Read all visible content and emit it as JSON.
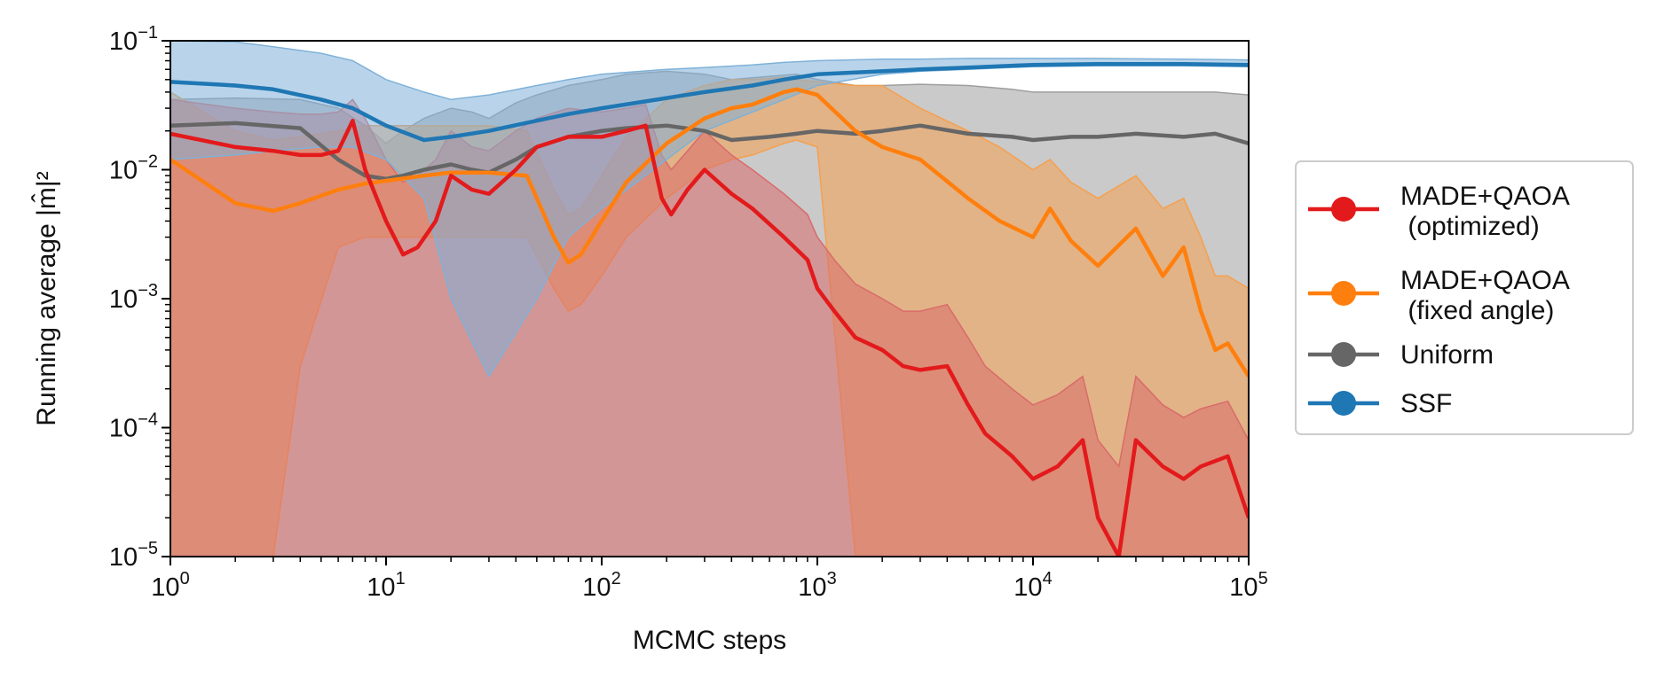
{
  "chart_data": {
    "type": "line",
    "xlabel": "MCMC steps",
    "ylabel": "Running average |m̂|²",
    "xscale": "log",
    "yscale": "log",
    "xlim": [
      1,
      100000
    ],
    "ylim": [
      1e-05,
      0.1
    ],
    "x_ticks": [
      {
        "value": 1,
        "base": "10",
        "exp": "0"
      },
      {
        "value": 10,
        "base": "10",
        "exp": "1"
      },
      {
        "value": 100,
        "base": "10",
        "exp": "2"
      },
      {
        "value": 1000,
        "base": "10",
        "exp": "3"
      },
      {
        "value": 10000,
        "base": "10",
        "exp": "4"
      },
      {
        "value": 100000,
        "base": "10",
        "exp": "5"
      }
    ],
    "y_ticks": [
      {
        "value": 1e-05,
        "base": "10",
        "exp": "−5"
      },
      {
        "value": 0.0001,
        "base": "10",
        "exp": "−4"
      },
      {
        "value": 0.001,
        "base": "10",
        "exp": "−3"
      },
      {
        "value": 0.01,
        "base": "10",
        "exp": "−2"
      },
      {
        "value": 0.1,
        "base": "10",
        "exp": "−1"
      }
    ],
    "grid": false,
    "legend_position": "outside-right",
    "series": [
      {
        "name": "Uniform",
        "color": "#666666",
        "band_color": "#9e9e9e",
        "x": [
          1,
          2,
          4,
          6,
          8,
          10,
          12,
          15,
          20,
          25,
          30,
          40,
          50,
          70,
          100,
          130,
          200,
          300,
          400,
          600,
          800,
          1000,
          1500,
          2000,
          3000,
          5000,
          8000,
          10000,
          15000,
          20000,
          30000,
          50000,
          70000,
          100000
        ],
        "y": [
          0.022,
          0.023,
          0.021,
          0.012,
          0.009,
          0.0085,
          0.009,
          0.01,
          0.011,
          0.01,
          0.0095,
          0.012,
          0.015,
          0.018,
          0.02,
          0.021,
          0.022,
          0.02,
          0.017,
          0.018,
          0.019,
          0.02,
          0.019,
          0.02,
          0.022,
          0.019,
          0.018,
          0.017,
          0.018,
          0.018,
          0.019,
          0.018,
          0.019,
          0.016
        ],
        "lower": [
          1e-05,
          1e-05,
          1e-05,
          1e-05,
          1e-05,
          1e-05,
          1e-05,
          1e-05,
          1e-05,
          1e-05,
          1e-05,
          1e-05,
          1e-05,
          1e-05,
          1e-05,
          1e-05,
          1e-05,
          1e-05,
          1e-05,
          1e-05,
          1e-05,
          1e-05,
          1e-05,
          1e-05,
          1e-05,
          1e-05,
          1e-05,
          1e-05,
          1e-05,
          1e-05,
          1e-05,
          1e-05,
          1e-05,
          1e-05
        ],
        "upper": [
          0.035,
          0.036,
          0.035,
          0.03,
          0.022,
          0.016,
          0.02,
          0.025,
          0.03,
          0.028,
          0.025,
          0.033,
          0.038,
          0.045,
          0.05,
          0.055,
          0.058,
          0.055,
          0.05,
          0.053,
          0.055,
          0.05,
          0.045,
          0.045,
          0.046,
          0.045,
          0.042,
          0.04,
          0.04,
          0.04,
          0.04,
          0.04,
          0.04,
          0.038
        ]
      },
      {
        "name": "MADE+QAOA\n(fixed angle)",
        "color": "#ff7f0e",
        "band_color": "#f5a04f",
        "x": [
          1,
          2,
          3,
          4,
          6,
          8,
          10,
          15,
          20,
          30,
          45,
          60,
          70,
          80,
          100,
          130,
          200,
          300,
          400,
          500,
          700,
          800,
          1000,
          1500,
          2000,
          3000,
          5000,
          7000,
          10000,
          12000,
          15000,
          20000,
          30000,
          40000,
          50000,
          60000,
          70000,
          80000,
          100000
        ],
        "y": [
          0.012,
          0.0055,
          0.0048,
          0.0055,
          0.007,
          0.0078,
          0.0082,
          0.009,
          0.0095,
          0.0095,
          0.009,
          0.003,
          0.0019,
          0.0022,
          0.004,
          0.008,
          0.016,
          0.025,
          0.03,
          0.032,
          0.04,
          0.042,
          0.038,
          0.02,
          0.015,
          0.012,
          0.006,
          0.004,
          0.003,
          0.005,
          0.0028,
          0.0018,
          0.0035,
          0.0015,
          0.0025,
          0.0008,
          0.0004,
          0.00045,
          0.00025
        ],
        "lower": [
          1e-05,
          1e-05,
          1e-05,
          0.0003,
          0.0025,
          0.003,
          0.003,
          0.003,
          0.003,
          0.003,
          0.003,
          0.0012,
          0.0008,
          0.0009,
          0.0015,
          0.003,
          0.006,
          0.01,
          0.012,
          0.013,
          0.016,
          0.017,
          0.015,
          1e-05,
          1e-05,
          1e-05,
          1e-05,
          1e-05,
          1e-05,
          1e-05,
          1e-05,
          1e-05,
          1e-05,
          1e-05,
          1e-05,
          1e-05,
          1e-05,
          1e-05,
          1e-05
        ],
        "upper": [
          0.04,
          0.02,
          0.017,
          0.018,
          0.02,
          0.022,
          0.022,
          0.022,
          0.022,
          0.022,
          0.02,
          0.007,
          0.0045,
          0.005,
          0.009,
          0.018,
          0.035,
          0.045,
          0.05,
          0.05,
          0.052,
          0.05,
          0.048,
          0.045,
          0.045,
          0.03,
          0.02,
          0.015,
          0.01,
          0.012,
          0.008,
          0.006,
          0.009,
          0.005,
          0.006,
          0.003,
          0.0015,
          0.0015,
          0.0012
        ]
      },
      {
        "name": "MADE+QAOA\n(optimized)",
        "color": "#e31a1c",
        "band_color": "#d96b6b",
        "x": [
          1,
          2,
          3,
          4,
          5,
          6,
          7,
          8,
          10,
          12,
          14,
          17,
          20,
          25,
          30,
          40,
          50,
          70,
          100,
          130,
          160,
          190,
          210,
          250,
          300,
          400,
          500,
          700,
          900,
          1000,
          1200,
          1500,
          2000,
          2500,
          3000,
          4000,
          5000,
          6000,
          8000,
          10000,
          13000,
          17000,
          20000,
          25000,
          30000,
          40000,
          50000,
          60000,
          80000,
          100000
        ],
        "y": [
          0.019,
          0.015,
          0.014,
          0.013,
          0.013,
          0.014,
          0.024,
          0.01,
          0.004,
          0.0022,
          0.0025,
          0.004,
          0.009,
          0.007,
          0.0065,
          0.01,
          0.015,
          0.018,
          0.018,
          0.02,
          0.022,
          0.006,
          0.0045,
          0.007,
          0.01,
          0.0065,
          0.005,
          0.003,
          0.002,
          0.0012,
          0.0008,
          0.0005,
          0.0004,
          0.0003,
          0.00028,
          0.0003,
          0.00015,
          9e-05,
          6e-05,
          4e-05,
          5e-05,
          8e-05,
          2e-05,
          1e-05,
          8e-05,
          5e-05,
          4e-05,
          5e-05,
          6e-05,
          2e-05
        ],
        "lower": [
          1e-05,
          1e-05,
          1e-05,
          1e-05,
          1e-05,
          1e-05,
          1e-05,
          1e-05,
          1e-05,
          1e-05,
          1e-05,
          1e-05,
          1e-05,
          1e-05,
          1e-05,
          1e-05,
          1e-05,
          1e-05,
          1e-05,
          1e-05,
          1e-05,
          1e-05,
          1e-05,
          1e-05,
          1e-05,
          1e-05,
          1e-05,
          1e-05,
          1e-05,
          1e-05,
          1e-05,
          1e-05,
          1e-05,
          1e-05,
          1e-05,
          1e-05,
          1e-05,
          1e-05,
          1e-05,
          1e-05,
          1e-05,
          1e-05,
          1e-05,
          1e-05,
          1e-05,
          1e-05,
          1e-05,
          1e-05,
          1e-05,
          1e-05
        ],
        "upper": [
          0.035,
          0.03,
          0.028,
          0.027,
          0.027,
          0.028,
          0.035,
          0.025,
          0.012,
          0.008,
          0.009,
          0.012,
          0.02,
          0.015,
          0.014,
          0.02,
          0.025,
          0.03,
          0.028,
          0.03,
          0.032,
          0.013,
          0.01,
          0.014,
          0.02,
          0.013,
          0.01,
          0.0065,
          0.0045,
          0.003,
          0.002,
          0.0013,
          0.001,
          0.0008,
          0.0008,
          0.0009,
          0.0005,
          0.0003,
          0.0002,
          0.00015,
          0.00018,
          0.00025,
          8e-05,
          5e-05,
          0.00025,
          0.00015,
          0.00012,
          0.00014,
          0.00016,
          8e-05
        ]
      },
      {
        "name": "SSF",
        "color": "#1f77b4",
        "band_color": "#7fb1d8",
        "x": [
          1,
          2,
          3,
          5,
          7,
          10,
          15,
          20,
          30,
          50,
          70,
          100,
          200,
          300,
          500,
          700,
          1000,
          2000,
          3000,
          5000,
          10000,
          20000,
          50000,
          100000
        ],
        "y": [
          0.048,
          0.045,
          0.042,
          0.035,
          0.03,
          0.022,
          0.017,
          0.018,
          0.02,
          0.024,
          0.027,
          0.03,
          0.036,
          0.04,
          0.045,
          0.05,
          0.055,
          0.058,
          0.06,
          0.062,
          0.065,
          0.066,
          0.066,
          0.065
        ],
        "lower": [
          0.012,
          0.013,
          0.014,
          0.015,
          0.015,
          0.012,
          0.006,
          0.001,
          0.00025,
          0.001,
          0.003,
          0.005,
          0.012,
          0.02,
          0.028,
          0.035,
          0.045,
          0.055,
          0.058,
          0.06,
          0.063,
          0.064,
          0.064,
          0.063
        ],
        "upper": [
          0.1,
          0.098,
          0.09,
          0.08,
          0.07,
          0.05,
          0.04,
          0.035,
          0.038,
          0.045,
          0.05,
          0.055,
          0.06,
          0.062,
          0.065,
          0.068,
          0.07,
          0.072,
          0.072,
          0.073,
          0.073,
          0.073,
          0.072,
          0.071
        ]
      }
    ],
    "legend": [
      {
        "lines": [
          "MADE+QAOA",
          " (optimized)"
        ],
        "color": "#e31a1c"
      },
      {
        "lines": [
          "MADE+QAOA",
          " (fixed angle)"
        ],
        "color": "#ff7f0e"
      },
      {
        "lines": [
          "Uniform"
        ],
        "color": "#666666"
      },
      {
        "lines": [
          "SSF"
        ],
        "color": "#1f77b4"
      }
    ]
  }
}
